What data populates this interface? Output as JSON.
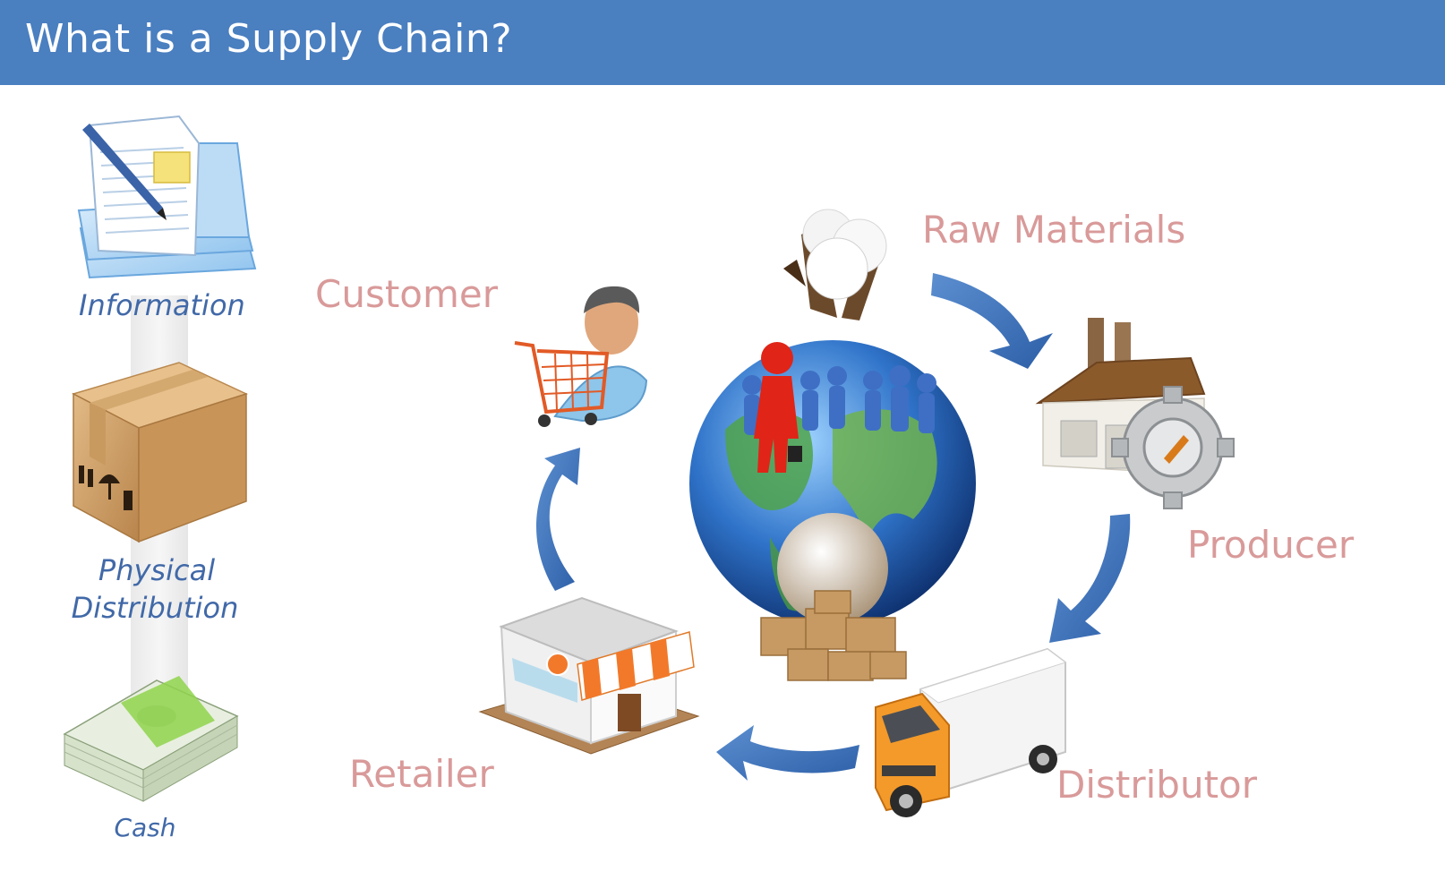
{
  "header": {
    "title": "What is a Supply Chain?"
  },
  "sidebar": {
    "information_label": "Information",
    "physical_line1": "Physical",
    "physical_line2": "Distribution",
    "cash_label": "Cash"
  },
  "cycle": {
    "raw_materials": "Raw Materials",
    "producer": "Producer",
    "distributor": "Distributor",
    "retailer": "Retailer",
    "customer": "Customer"
  },
  "colors": {
    "header_bg": "#4a7fc0",
    "node_label": "#d99a9a",
    "side_label": "#4169a8",
    "arrow": "#3f72b8"
  },
  "icons": [
    "documents-icon",
    "cardboard-box-icon",
    "cash-stack-icon",
    "cotton-icon",
    "factory-gear-icon",
    "truck-icon",
    "storefront-icon",
    "shopper-cart-icon",
    "globe-team-icon"
  ]
}
